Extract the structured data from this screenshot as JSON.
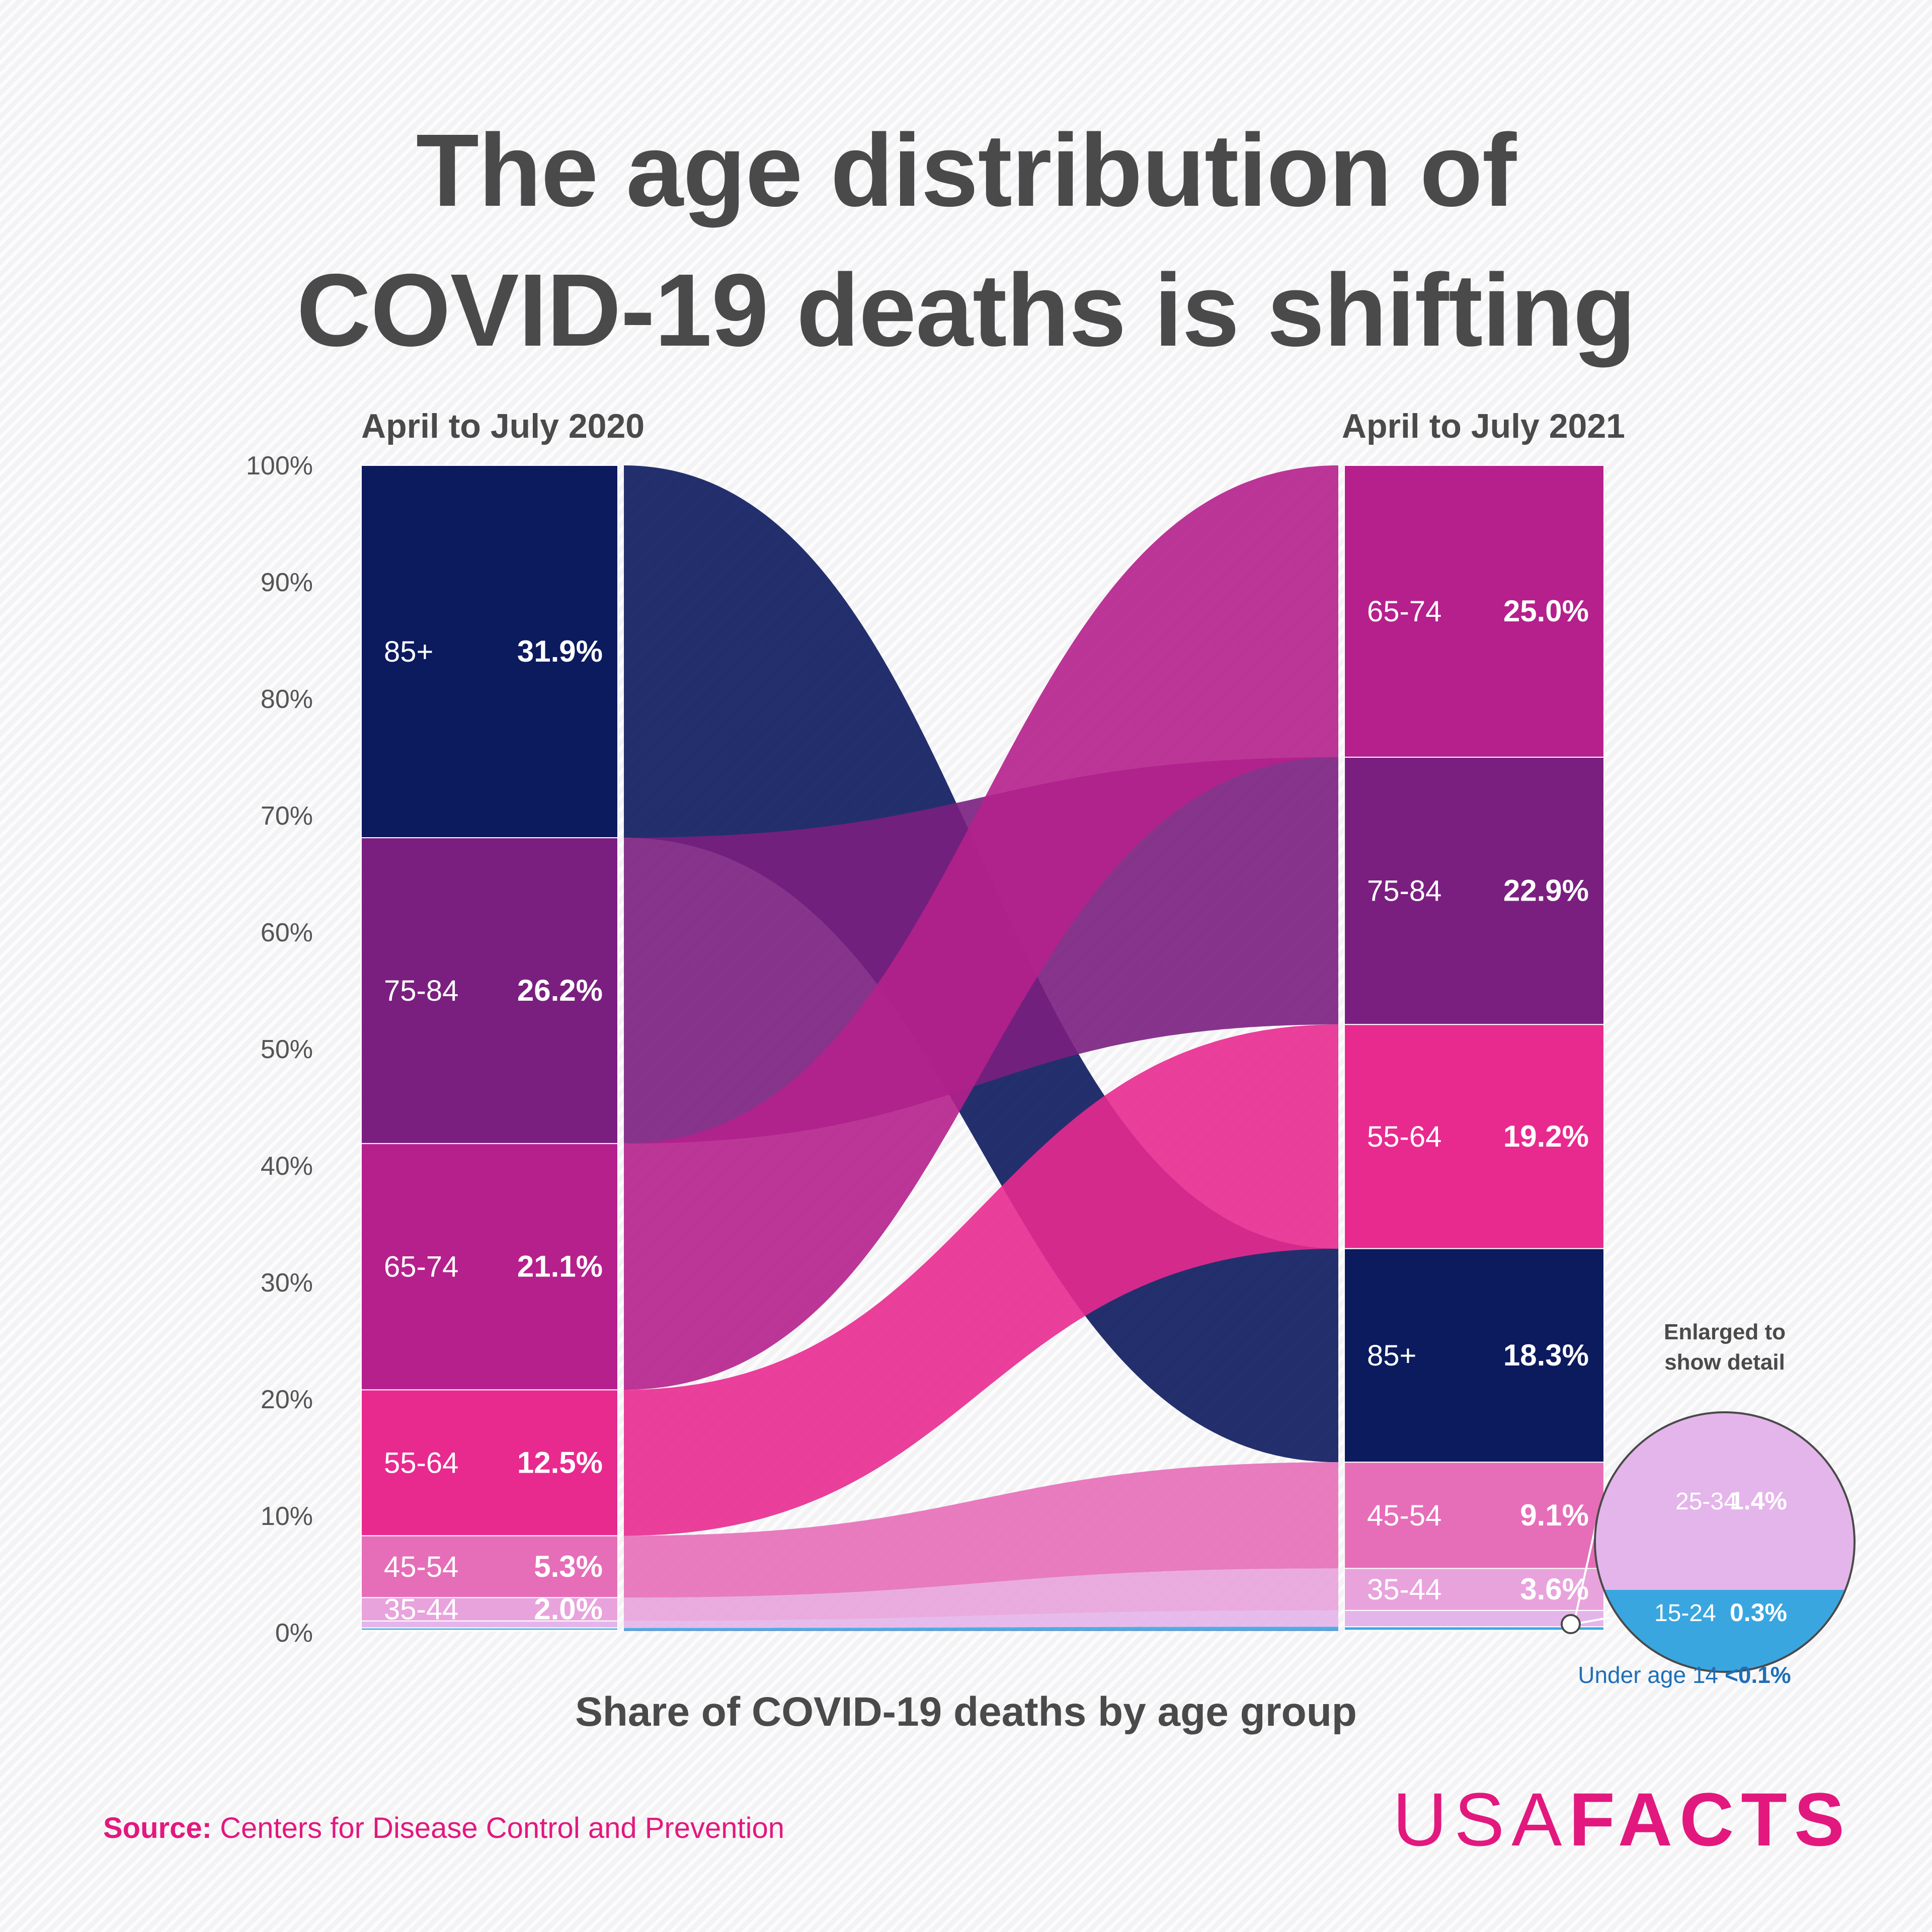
{
  "title_line1": "The age distribution of",
  "title_line2": "COVID-19 deaths is shifting",
  "chart_data": {
    "type": "sankey",
    "xlabel": "Share of COVID-19 deaths by age group",
    "yticks": [
      "0%",
      "10%",
      "20%",
      "30%",
      "40%",
      "50%",
      "60%",
      "70%",
      "80%",
      "90%",
      "100%"
    ],
    "ylim": [
      0,
      100
    ],
    "periods": [
      "April to July 2020",
      "April to July 2021"
    ],
    "groups": [
      {
        "key": "85+",
        "label": "85+",
        "color": "#0c1a5e",
        "v2020": 31.9,
        "v2021": 18.3,
        "l2020": "31.9%",
        "l2021": "18.3%"
      },
      {
        "key": "75-84",
        "label": "75-84",
        "color": "#7a1f80",
        "v2020": 26.2,
        "v2021": 22.9,
        "l2020": "26.2%",
        "l2021": "22.9%"
      },
      {
        "key": "65-74",
        "label": "65-74",
        "color": "#b5208c",
        "v2020": 21.1,
        "v2021": 25.0,
        "l2020": "21.1%",
        "l2021": "25.0%"
      },
      {
        "key": "55-64",
        "label": "55-64",
        "color": "#e82a8f",
        "v2020": 12.5,
        "v2021": 19.2,
        "l2020": "12.5%",
        "l2021": "19.2%"
      },
      {
        "key": "45-54",
        "label": "45-54",
        "color": "#e66eb8",
        "v2020": 5.3,
        "v2021": 9.1,
        "l2020": "5.3%",
        "l2021": "9.1%"
      },
      {
        "key": "35-44",
        "label": "35-44",
        "color": "#e8a3dc",
        "v2020": 2.0,
        "v2021": 3.6,
        "l2020": "2.0%",
        "l2021": "3.6%"
      },
      {
        "key": "25-34",
        "label": "25-34",
        "color": "#e4b5ea",
        "v2020": 0.6,
        "v2021": 1.4,
        "l2020": "",
        "l2021": ""
      },
      {
        "key": "15-24",
        "label": "15-24",
        "color": "#3aa6e0",
        "v2020": 0.2,
        "v2021": 0.3,
        "l2020": "",
        "l2021": ""
      },
      {
        "key": "0-14",
        "label": "Under age 14",
        "color": "#2f5fb8",
        "v2020": 0.05,
        "v2021": 0.05,
        "l2020": "",
        "l2021": ""
      }
    ],
    "order2020": [
      "85+",
      "75-84",
      "65-74",
      "55-64",
      "45-54",
      "35-44",
      "25-34",
      "15-24",
      "0-14"
    ],
    "order2021": [
      "65-74",
      "75-84",
      "55-64",
      "85+",
      "45-54",
      "35-44",
      "25-34",
      "15-24",
      "0-14"
    ],
    "inset": {
      "heading": [
        "Enlarged to",
        "show detail"
      ],
      "items": [
        {
          "label": "25-34",
          "value": "1.4%"
        },
        {
          "label": "15-24",
          "value": "0.3%"
        }
      ],
      "under14_label": "Under age 14",
      "under14_value": "<0.1%"
    }
  },
  "source_label": "Source:",
  "source_text": "Centers for Disease Control and Prevention",
  "logo_part1": "USA",
  "logo_part2": "FACTS"
}
